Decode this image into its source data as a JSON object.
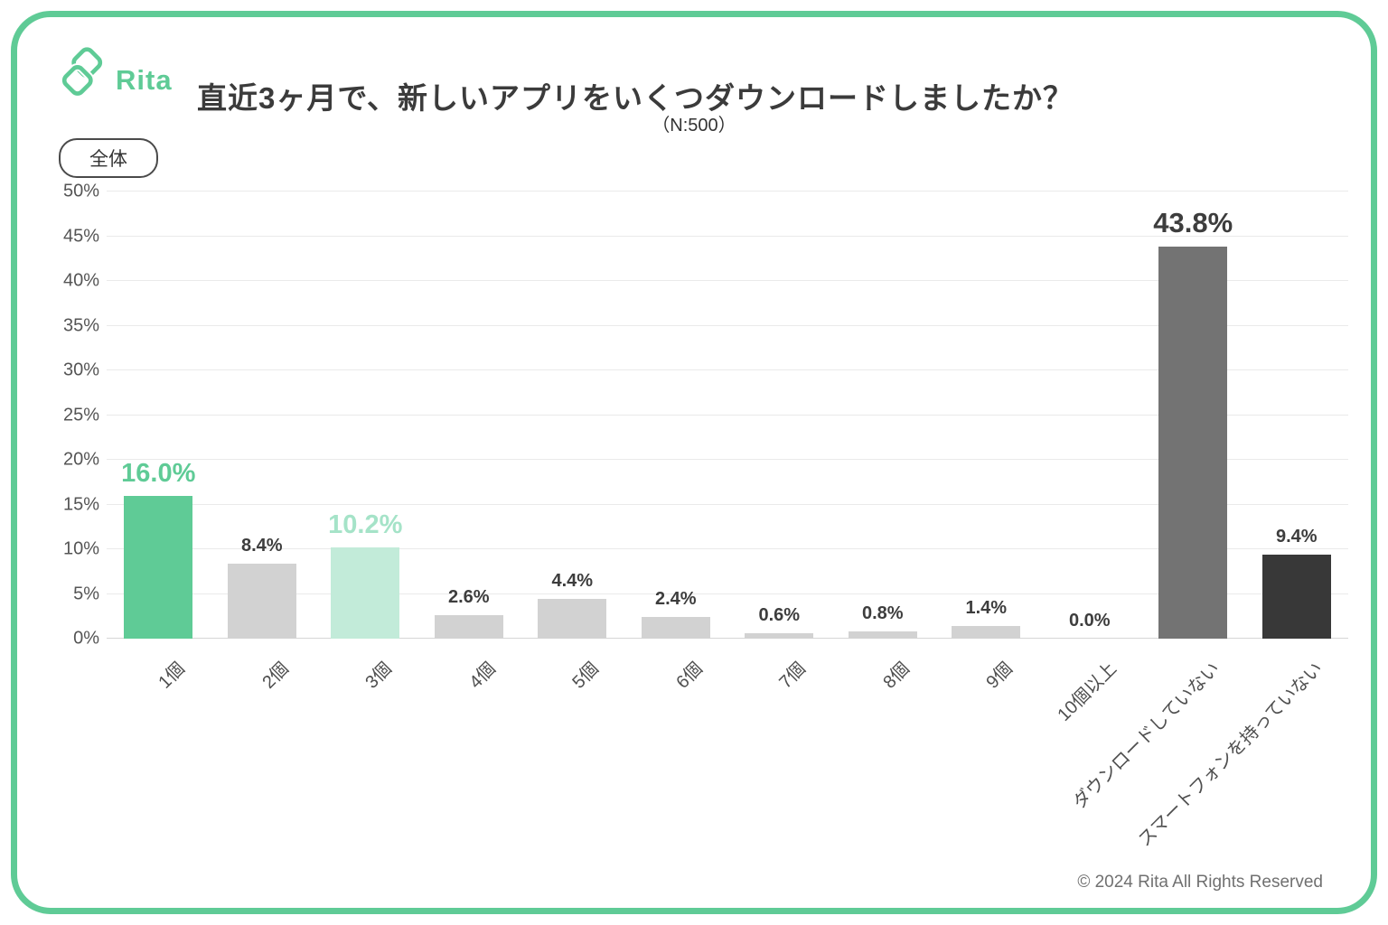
{
  "header": {
    "logo_text": "Rita",
    "title": "直近3ヶ月で、新しいアプリをいくつダウンロードしましたか？",
    "sample_size": "（N:500）"
  },
  "filter_badge": {
    "label": "全体"
  },
  "footer": {
    "copyright": "© 2024 Rita All Rights Reserved"
  },
  "colors": {
    "brand_green": "#5FCB96",
    "mint": "#C2EBD9",
    "light_gray": "#D2D2D2",
    "mid_gray": "#737373",
    "dark_gray": "#383838",
    "label_dark": "#3d3d3d",
    "mint_label": "#A5E3C8"
  },
  "chart_data": {
    "type": "bar",
    "title": "直近3ヶ月で、新しいアプリをいくつダウンロードしましたか？",
    "xlabel": "",
    "ylabel": "",
    "ylim": [
      0,
      50
    ],
    "grid": true,
    "legend_position": "none",
    "categories": [
      "1個",
      "2個",
      "3個",
      "4個",
      "5個",
      "6個",
      "7個",
      "8個",
      "9個",
      "10個以上",
      "ダウンロードしていない",
      "スマートフォンを持っていない"
    ],
    "values": [
      16.0,
      8.4,
      10.2,
      2.6,
      4.4,
      2.4,
      0.6,
      0.8,
      1.4,
      0.0,
      43.8,
      9.4
    ],
    "value_labels": [
      "16.0%",
      "8.4%",
      "10.2%",
      "2.6%",
      "4.4%",
      "2.4%",
      "0.6%",
      "0.8%",
      "1.4%",
      "0.0%",
      "43.8%",
      "9.4%"
    ],
    "bar_colors": [
      "#5FCB96",
      "#D2D2D2",
      "#C2EBD9",
      "#D2D2D2",
      "#D2D2D2",
      "#D2D2D2",
      "#D2D2D2",
      "#D2D2D2",
      "#D2D2D2",
      "#D2D2D2",
      "#737373",
      "#383838"
    ],
    "emphasis": [
      {
        "index": 0,
        "color": "#5FCB96",
        "size": 29
      },
      {
        "index": 2,
        "color": "#A5E3C8",
        "size": 29
      },
      {
        "index": 10,
        "color": "#3d3d3d",
        "size": 31
      }
    ],
    "yticks": [
      {
        "v": 0,
        "label": "0%"
      },
      {
        "v": 5,
        "label": "5%"
      },
      {
        "v": 10,
        "label": "10%"
      },
      {
        "v": 15,
        "label": "15%"
      },
      {
        "v": 20,
        "label": "20%"
      },
      {
        "v": 25,
        "label": "25%"
      },
      {
        "v": 30,
        "label": "30%"
      },
      {
        "v": 35,
        "label": "35%"
      },
      {
        "v": 40,
        "label": "40%"
      },
      {
        "v": 45,
        "label": "45%"
      },
      {
        "v": 50,
        "label": "50%"
      }
    ]
  }
}
